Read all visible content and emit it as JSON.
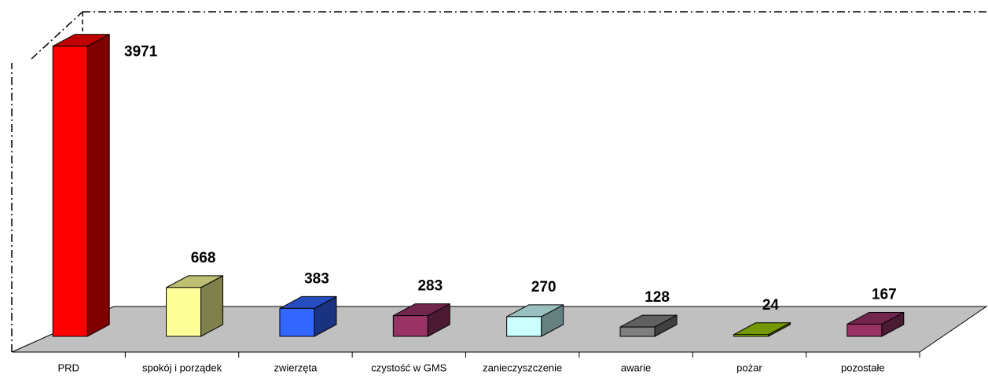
{
  "chart_data": {
    "type": "bar3d",
    "categories": [
      "PRD",
      "spokój i porządek",
      "zwierzęta",
      "czystość w GMS",
      "zanieczyszczenie",
      "awarie",
      "pożar",
      "pozostałe"
    ],
    "values": [
      3971,
      668,
      383,
      283,
      270,
      128,
      24,
      167
    ],
    "colors": [
      "#ff0000",
      "#ffff99",
      "#3366ff",
      "#993366",
      "#ccffff",
      "#808080",
      "#99cc00",
      "#993366"
    ],
    "ylim": [
      0,
      4000
    ]
  }
}
